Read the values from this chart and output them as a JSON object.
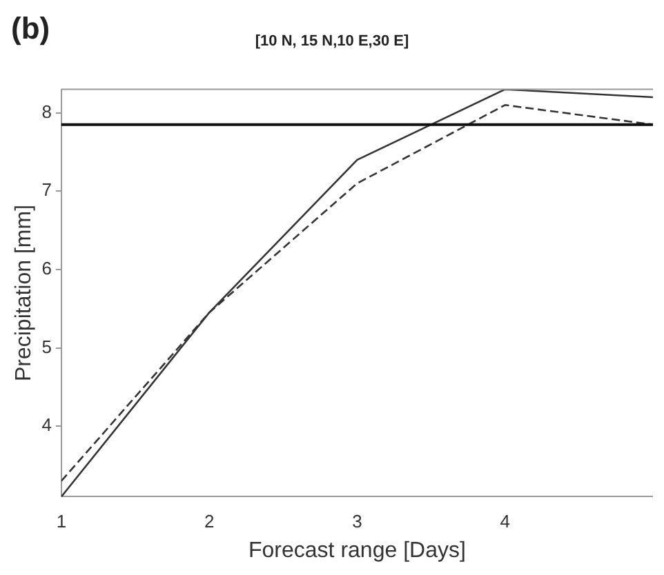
{
  "chart_data": {
    "type": "line",
    "title": "[10 N, 15 N,10 E,30 E]",
    "annotations": [
      "(b)"
    ],
    "xlabel": "Forecast range [Days]",
    "ylabel": "Precipitation [mm]",
    "x": [
      1,
      2,
      3,
      4,
      5
    ],
    "series": [
      {
        "color": "#333333",
        "values": [
          3.1,
          5.45,
          7.4,
          8.3,
          8.2
        ],
        "line_style": "solid"
      },
      {
        "color": "#333333",
        "values": [
          3.3,
          5.45,
          7.1,
          8.1,
          7.85
        ],
        "line_style": "dashed"
      }
    ],
    "xlim": [
      1,
      5
    ],
    "xticks": [
      1,
      2,
      3,
      4
    ],
    "ylim": [
      3.1,
      8.3
    ],
    "yticks": [
      4,
      5,
      6,
      7,
      8
    ],
    "ref_lines": [
      {
        "axis": "y",
        "value": 7.85,
        "color": "#111111"
      }
    ],
    "grid": false,
    "legend": false,
    "marker": "none"
  }
}
